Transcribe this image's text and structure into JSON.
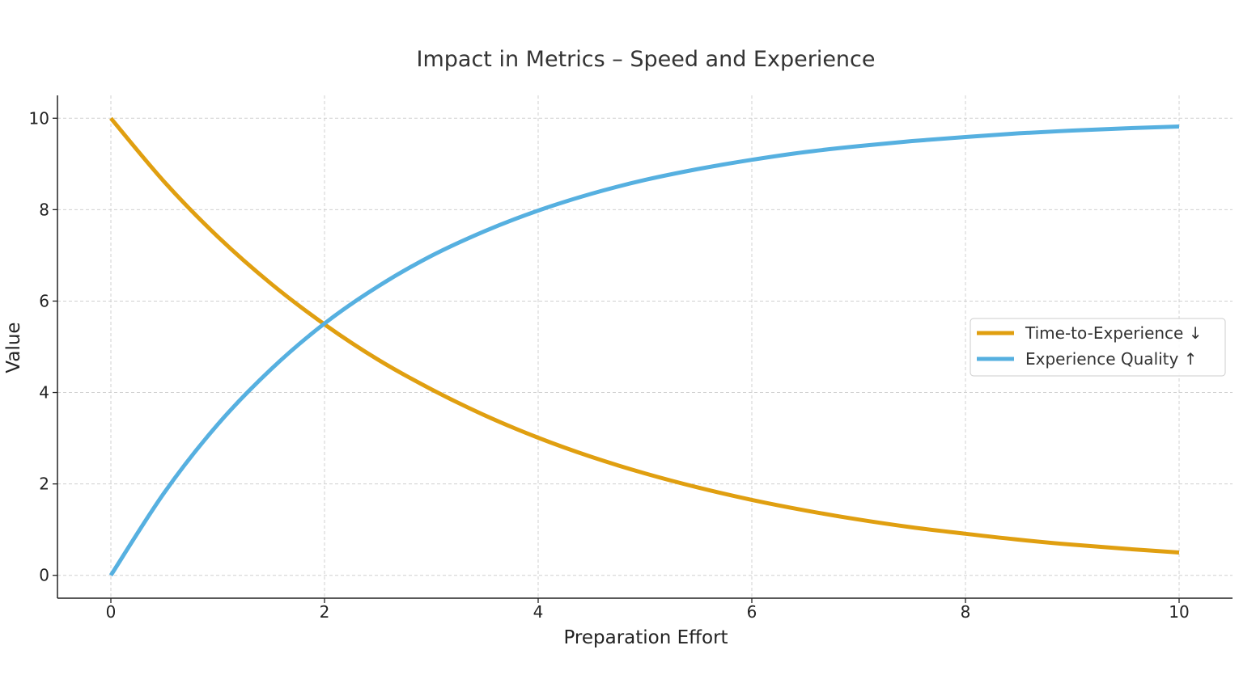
{
  "chart_data": {
    "type": "line",
    "title": "Impact in Metrics – Speed and Experience",
    "xlabel": "Preparation Effort",
    "ylabel": "Value",
    "xlim": [
      -0.5,
      10.5
    ],
    "ylim": [
      -0.5,
      10.5
    ],
    "xticks": [
      0,
      2,
      4,
      6,
      8,
      10
    ],
    "yticks": [
      0,
      2,
      4,
      6,
      8,
      10
    ],
    "grid": true,
    "legend_position": "center-right",
    "x": [
      0,
      0.5,
      1,
      1.5,
      2,
      2.5,
      3,
      3.5,
      4,
      4.5,
      5,
      5.5,
      6,
      6.5,
      7,
      7.5,
      8,
      8.5,
      9,
      9.5,
      10
    ],
    "series": [
      {
        "name": "Time-to-Experience ↓",
        "color": "#E09F10",
        "values": [
          10.0,
          8.61,
          7.41,
          6.38,
          5.49,
          4.72,
          4.07,
          3.5,
          3.01,
          2.59,
          2.23,
          1.92,
          1.65,
          1.42,
          1.22,
          1.05,
          0.91,
          0.78,
          0.67,
          0.58,
          0.5
        ]
      },
      {
        "name": "Experience Quality ↑",
        "color": "#56B0E0",
        "values": [
          0.0,
          1.81,
          3.3,
          4.51,
          5.51,
          6.32,
          6.99,
          7.53,
          7.98,
          8.35,
          8.65,
          8.89,
          9.09,
          9.26,
          9.39,
          9.5,
          9.59,
          9.67,
          9.73,
          9.78,
          9.82
        ]
      }
    ]
  }
}
